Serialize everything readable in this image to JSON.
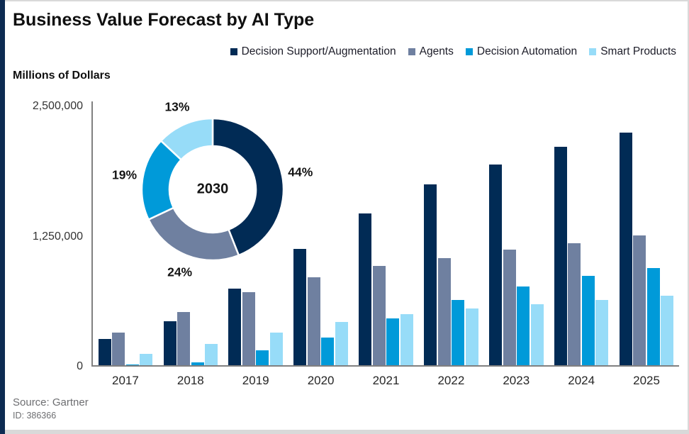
{
  "header": {
    "title": "Business Value Forecast by AI Type"
  },
  "y_axis_title": "Millions of Dollars",
  "footer": {
    "source": "Source: Gartner",
    "doc_id": "ID: 386366"
  },
  "colors": {
    "accent_navy": "#0d2b52",
    "frame_gray": "#d9d9d9",
    "axis_gray": "#808080"
  },
  "chart_data": {
    "type": "bar",
    "title": "Business Value Forecast by AI Type",
    "xlabel": "",
    "ylabel": "Millions of Dollars",
    "grid": false,
    "legend_position": "top",
    "categories": [
      "2017",
      "2018",
      "2019",
      "2020",
      "2021",
      "2022",
      "2023",
      "2024",
      "2025"
    ],
    "ylim": [
      0,
      2500000
    ],
    "yticks": [
      {
        "value": 2500000,
        "label": "2,500,000"
      },
      {
        "value": 1250000,
        "label": "1,250,000"
      },
      {
        "value": 0,
        "label": "0"
      }
    ],
    "series": [
      {
        "name": "Decision Support/Augmentation",
        "color": "#012b55",
        "values": [
          250000,
          420000,
          735000,
          1120000,
          1460000,
          1740000,
          1930000,
          2095000,
          2235000
        ]
      },
      {
        "name": "Agents",
        "color": "#6f80a0",
        "values": [
          315000,
          510000,
          700000,
          845000,
          955000,
          1030000,
          1110000,
          1175000,
          1245000
        ]
      },
      {
        "name": "Decision Automation",
        "color": "#009ad9",
        "values": [
          5000,
          25000,
          140000,
          265000,
          450000,
          625000,
          755000,
          860000,
          935000
        ]
      },
      {
        "name": "Smart Products",
        "color": "#97dcf8",
        "values": [
          110000,
          205000,
          315000,
          415000,
          490000,
          545000,
          585000,
          625000,
          665000
        ]
      }
    ],
    "inset_donut": {
      "type": "pie",
      "center_label": "2030",
      "slices": [
        {
          "name": "Decision Support/Augmentation",
          "pct": 44,
          "label": "44%",
          "color": "#012b55"
        },
        {
          "name": "Agents",
          "pct": 24,
          "label": "24%",
          "color": "#6f80a0"
        },
        {
          "name": "Decision Automation",
          "pct": 19,
          "label": "19%",
          "color": "#009ad9"
        },
        {
          "name": "Smart Products",
          "pct": 13,
          "label": "13%",
          "color": "#97dcf8"
        }
      ]
    }
  }
}
